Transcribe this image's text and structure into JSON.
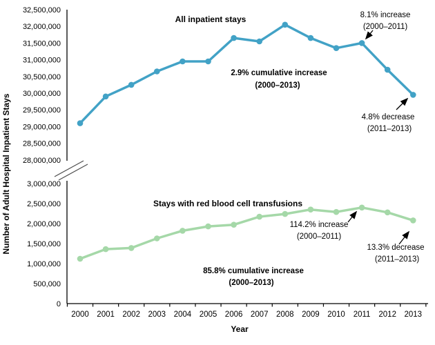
{
  "y_axis_title": "Number of Adult Hospital Inpatient Stays",
  "x_axis_title": "Year",
  "chart_data": {
    "type": "line",
    "categories": [
      2000,
      2001,
      2002,
      2003,
      2004,
      2005,
      2006,
      2007,
      2008,
      2009,
      2010,
      2011,
      2012,
      2013
    ],
    "x_tick_labels": [
      "2000",
      "2001",
      "2002",
      "2003",
      "2004",
      "2005",
      "2006",
      "2007",
      "2008",
      "2009",
      "2010",
      "2011",
      "2012",
      "2013"
    ],
    "axis_break": true,
    "grid": false,
    "legend_position": "none",
    "panels": [
      {
        "name": "all-inpatient-stays",
        "label": "All inpatient stays",
        "color": "#42A2C6",
        "ylim": [
          28000000,
          32500000
        ],
        "ytick_step": 500000,
        "ytick_labels": [
          "32,500,000",
          "32,000,000",
          "31,500,000",
          "31,000,000",
          "30,500,000",
          "30,000,000",
          "29,500,000",
          "29,000,000",
          "28,500,000",
          "28,000,000"
        ],
        "values": [
          29100000,
          29900000,
          30250000,
          30650000,
          30950000,
          30950000,
          31650000,
          31550000,
          32050000,
          31650000,
          31350000,
          31500000,
          30700000,
          29950000
        ]
      },
      {
        "name": "stays-with-rbc-transfusions",
        "label": "Stays with red blood cell transfusions",
        "color": "#A5D8A8",
        "ylim": [
          0,
          3000000
        ],
        "ytick_step": 500000,
        "ytick_labels": [
          "3,000,000",
          "2,500,000",
          "2,000,000",
          "1,500,000",
          "1,000,000",
          "500,000",
          "0"
        ],
        "values": [
          1120000,
          1360000,
          1390000,
          1630000,
          1820000,
          1930000,
          1970000,
          2170000,
          2240000,
          2350000,
          2290000,
          2400000,
          2280000,
          2080000
        ]
      }
    ],
    "annotations": [
      {
        "id": "top-increase",
        "line1": "8.1% increase",
        "line2": "(2000–2011)",
        "target_year": 2011,
        "series": "all-inpatient-stays"
      },
      {
        "id": "top-cumulative",
        "line1": "2.9% cumulative increase",
        "line2": "(2000–2013)",
        "series": "all-inpatient-stays"
      },
      {
        "id": "top-decrease",
        "line1": "4.8% decrease",
        "line2": "(2011–2013)",
        "target_year": 2013,
        "series": "all-inpatient-stays"
      },
      {
        "id": "bottom-increase",
        "line1": "114.2% increase",
        "line2": "(2000–2011)",
        "target_year": 2011,
        "series": "stays-with-rbc-transfusions"
      },
      {
        "id": "bottom-cumulative",
        "line1": "85.8% cumulative increase",
        "line2": "(2000–2013)",
        "series": "stays-with-rbc-transfusions"
      },
      {
        "id": "bottom-decrease",
        "line1": "13.3% decrease",
        "line2": "(2011–2013)",
        "target_year": 2013,
        "series": "stays-with-rbc-transfusions"
      }
    ]
  }
}
